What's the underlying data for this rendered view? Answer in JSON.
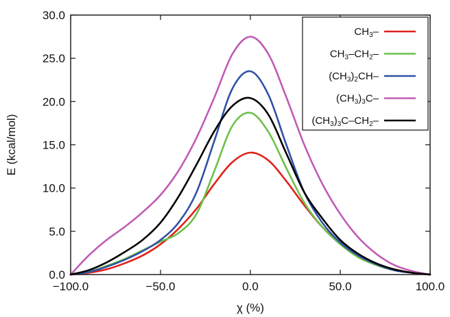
{
  "chart_data": {
    "type": "line",
    "title": "",
    "xlabel": "χ (%)",
    "ylabel": "E (kcal/mol)",
    "xlim": [
      -100,
      100
    ],
    "ylim": [
      0,
      30
    ],
    "x_ticks": [
      -100,
      -50,
      0,
      50,
      100
    ],
    "y_ticks": [
      0,
      5,
      10,
      15,
      20,
      25,
      30
    ],
    "x_tick_labels": [
      "−100.0",
      "−50.0",
      "0.0",
      "50.0",
      "100.0"
    ],
    "y_tick_labels": [
      "0.0",
      "5.0",
      "10.0",
      "15.0",
      "20.0",
      "25.0",
      "30.0"
    ],
    "grid": false,
    "legend_position": "top-right",
    "x": [
      -100,
      -90,
      -80,
      -70,
      -60,
      -50,
      -40,
      -30,
      -20,
      -10,
      0,
      10,
      20,
      30,
      40,
      50,
      60,
      70,
      80,
      90,
      100
    ],
    "series": [
      {
        "name": "CH3–",
        "legend_parts": [
          [
            "CH",
            ""
          ],
          [
            "3",
            "sub"
          ],
          [
            "–",
            ""
          ]
        ],
        "color": "#e0201b",
        "values": [
          0,
          0.2,
          0.6,
          1.3,
          2.2,
          3.5,
          5.3,
          7.6,
          10.5,
          13.0,
          14.1,
          13.2,
          10.8,
          8.0,
          5.5,
          3.6,
          2.2,
          1.2,
          0.6,
          0.2,
          0
        ]
      },
      {
        "name": "CH3–CH2–",
        "legend_parts": [
          [
            "CH",
            ""
          ],
          [
            "3",
            "sub"
          ],
          [
            "–CH",
            ""
          ],
          [
            "2",
            "sub"
          ],
          [
            "–",
            ""
          ]
        ],
        "color": "#6cc04a",
        "values": [
          0,
          0.3,
          1.0,
          1.8,
          2.8,
          3.8,
          4.8,
          7.0,
          12.0,
          17.2,
          18.7,
          16.5,
          12.3,
          8.3,
          5.5,
          3.5,
          2.0,
          1.1,
          0.5,
          0.2,
          0
        ]
      },
      {
        "name": "(CH3)2CH–",
        "legend_parts": [
          [
            "(CH",
            ""
          ],
          [
            "3",
            "sub"
          ],
          [
            ")",
            ""
          ],
          [
            "2",
            "sub"
          ],
          [
            "CH–",
            ""
          ]
        ],
        "color": "#2f51a6",
        "values": [
          0,
          0.3,
          0.9,
          1.7,
          2.7,
          4.0,
          6.0,
          9.5,
          15.5,
          21.5,
          23.5,
          20.8,
          15.0,
          9.5,
          6.0,
          3.7,
          2.2,
          1.2,
          0.5,
          0.2,
          0
        ]
      },
      {
        "name": "(CH3)3C–",
        "legend_parts": [
          [
            "(CH",
            ""
          ],
          [
            "3",
            "sub"
          ],
          [
            ")",
            ""
          ],
          [
            "3",
            "sub"
          ],
          [
            "C–",
            ""
          ]
        ],
        "color": "#c05bb5",
        "values": [
          0,
          2.2,
          4.0,
          5.5,
          7.2,
          9.2,
          12.0,
          15.8,
          20.5,
          25.5,
          27.5,
          25.5,
          20.5,
          15.0,
          10.5,
          7.0,
          4.3,
          2.4,
          1.1,
          0.4,
          0
        ]
      },
      {
        "name": "(CH3)3C–CH2–",
        "legend_parts": [
          [
            "(CH",
            ""
          ],
          [
            "3",
            "sub"
          ],
          [
            ")",
            ""
          ],
          [
            "3",
            "sub"
          ],
          [
            "C–CH",
            ""
          ],
          [
            "2",
            "sub"
          ],
          [
            "–",
            ""
          ]
        ],
        "color": "#000000",
        "values": [
          0,
          0.5,
          1.4,
          2.6,
          4.0,
          6.0,
          9.0,
          12.7,
          16.6,
          19.5,
          20.4,
          18.5,
          14.0,
          9.5,
          6.5,
          4.0,
          2.4,
          1.3,
          0.6,
          0.2,
          0
        ]
      }
    ]
  }
}
